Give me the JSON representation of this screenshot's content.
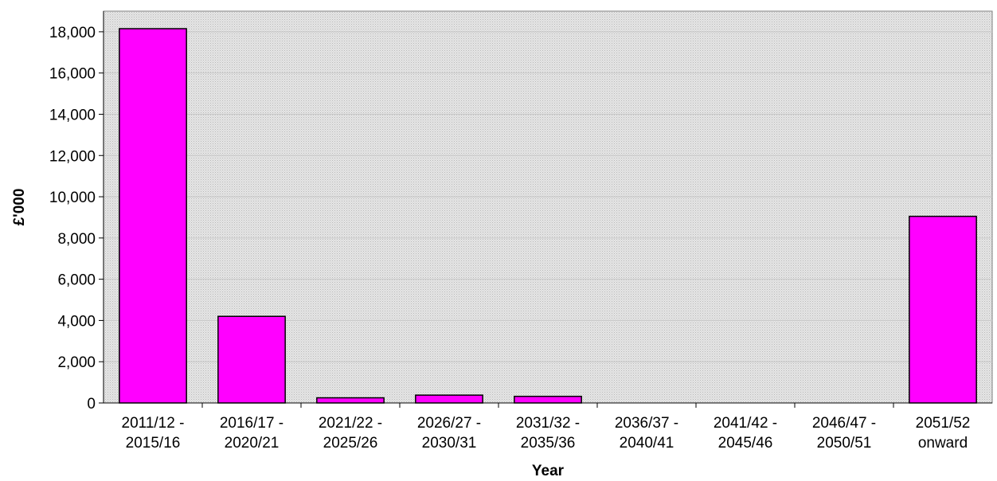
{
  "chart_data": {
    "type": "bar",
    "title": "",
    "xlabel": "Year",
    "ylabel": "£'000",
    "ylim": [
      0,
      19000
    ],
    "yticks": [
      0,
      2000,
      4000,
      6000,
      8000,
      10000,
      12000,
      14000,
      16000,
      18000
    ],
    "ytick_labels": [
      "0",
      "2,000",
      "4,000",
      "6,000",
      "8,000",
      "10,000",
      "12,000",
      "14,000",
      "16,000",
      "18,000"
    ],
    "categories": [
      [
        "2011/12 -",
        "2015/16"
      ],
      [
        "2016/17 -",
        "2020/21"
      ],
      [
        "2021/22 -",
        "2025/26"
      ],
      [
        "2026/27 -",
        "2030/31"
      ],
      [
        "2031/32 -",
        "2035/36"
      ],
      [
        "2036/37 -",
        "2040/41"
      ],
      [
        "2041/42 -",
        "2045/46"
      ],
      [
        "2046/47 -",
        "2050/51"
      ],
      [
        "2051/52",
        "onward"
      ]
    ],
    "values": [
      18150,
      4200,
      250,
      380,
      320,
      0,
      0,
      0,
      9050
    ],
    "grid": true,
    "legend": "none",
    "colors": {
      "bar_fill": "#ff00ff",
      "bar_stroke": "#000000",
      "plot_bg": "#d9d9d9",
      "gridline": "#c8c8c8"
    }
  }
}
